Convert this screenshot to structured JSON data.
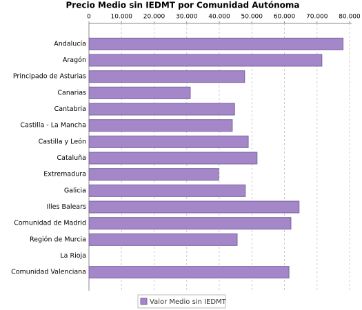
{
  "chart_data": {
    "type": "bar",
    "orientation": "horizontal",
    "title": "Precio Medio sin IEDMT por Comunidad Autónoma",
    "categories": [
      "Andalucía",
      "Aragón",
      "Principado de Asturias",
      "Canarias",
      "Cantabria",
      "Castilla - La Mancha",
      "Castilla y León",
      "Cataluña",
      "Extremadura",
      "Galicia",
      "Illes Balears",
      "Comunidad de Madrid",
      "Región de Murcia",
      "La Rioja",
      "Comunidad Valenciana"
    ],
    "series": [
      {
        "name": "Valor Medio sin IEDMT",
        "color": "#a487c9",
        "values": [
          78000,
          71500,
          47800,
          31100,
          44700,
          44000,
          48900,
          51600,
          39800,
          48000,
          64500,
          62000,
          45500,
          null,
          61400
        ]
      }
    ],
    "xlim": [
      0,
      80000
    ],
    "xticks": [
      0,
      {
        "value": 10000,
        "label": "10.000"
      },
      {
        "value": 20000,
        "label": "20.000"
      },
      {
        "value": 30000,
        "label": "30.000"
      },
      {
        "value": 40000,
        "label": "40.000"
      },
      {
        "value": 50000,
        "label": "50.000"
      },
      {
        "value": 60000,
        "label": "60.000"
      },
      {
        "value": 70000,
        "label": "70.000"
      },
      {
        "value": 80000,
        "label": "80.000"
      }
    ],
    "grid": true,
    "legend": "bottom"
  }
}
